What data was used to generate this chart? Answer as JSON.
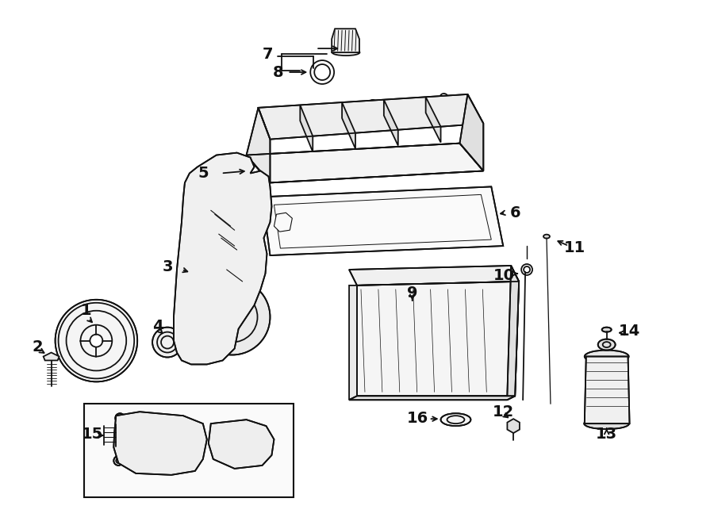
{
  "bg_color": "#ffffff",
  "line_color": "#111111",
  "fig_width": 9.0,
  "fig_height": 6.62,
  "dpi": 100,
  "label_fontsize": 14,
  "line_width": 1.3
}
